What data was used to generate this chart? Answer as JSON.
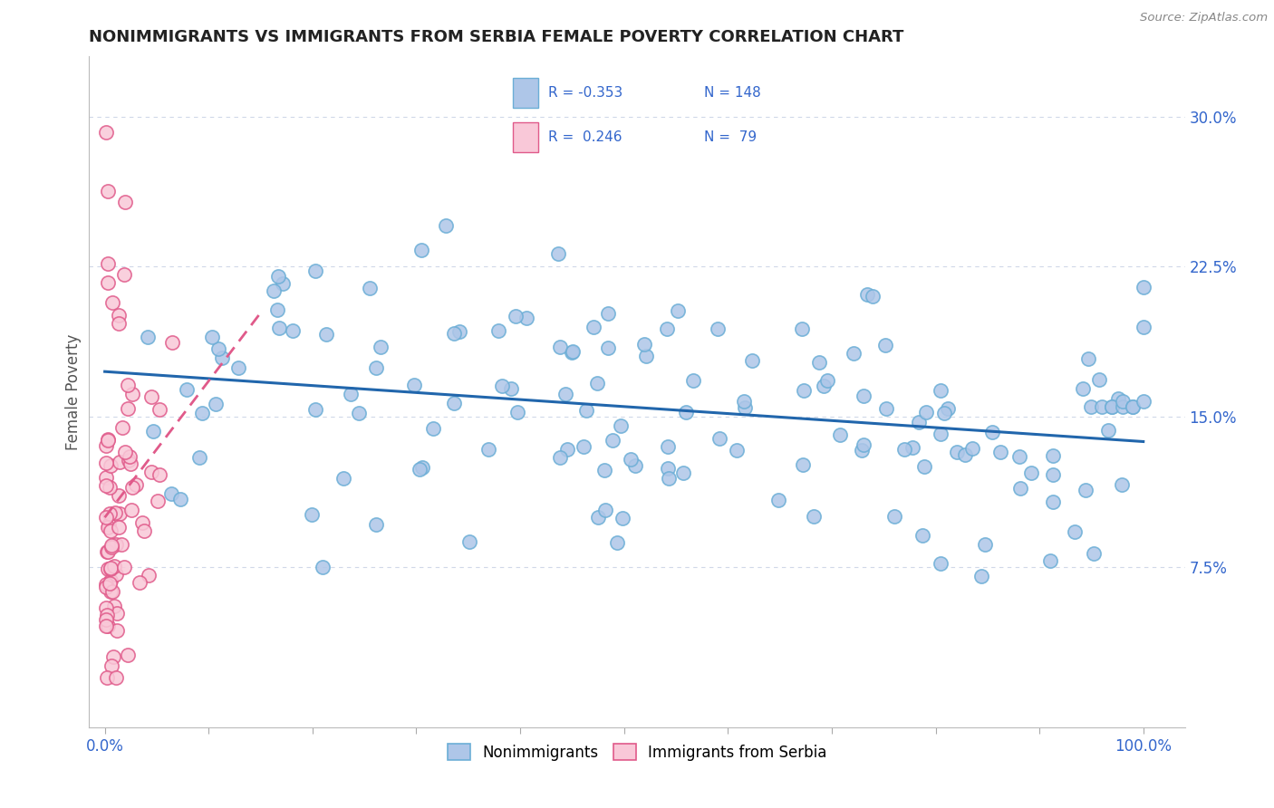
{
  "title": "NONIMMIGRANTS VS IMMIGRANTS FROM SERBIA FEMALE POVERTY CORRELATION CHART",
  "source": "Source: ZipAtlas.com",
  "ylabel": "Female Poverty",
  "yticks": [
    "7.5%",
    "15.0%",
    "22.5%",
    "30.0%"
  ],
  "ytick_vals": [
    0.075,
    0.15,
    0.225,
    0.3
  ],
  "blue_color": "#aec6e8",
  "blue_edge_color": "#6baed6",
  "pink_color": "#f9c8d8",
  "pink_edge_color": "#e05a8a",
  "blue_line_color": "#2166ac",
  "pink_line_color": "#e05a8a",
  "legend_text_color": "#3366cc",
  "background": "#ffffff",
  "grid_color": "#d0d8e8",
  "xmin": 0.0,
  "xmax": 1.0,
  "ymin": 0.0,
  "ymax": 0.315
}
